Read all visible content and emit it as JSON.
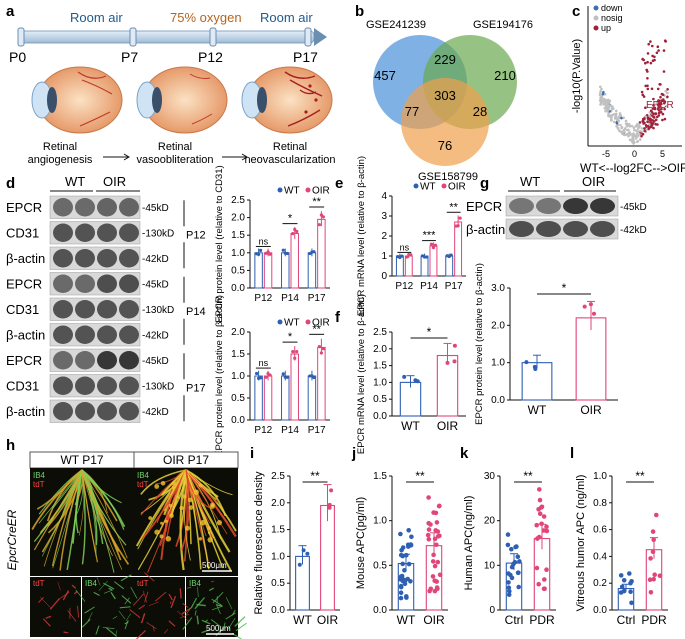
{
  "panels": {
    "a": "a",
    "b": "b",
    "c": "c",
    "d": "d",
    "e": "e",
    "f": "f",
    "g": "g",
    "h": "h",
    "i": "i",
    "j": "j",
    "k": "k",
    "l": "l"
  },
  "a": {
    "phases": [
      "Room air",
      "75% oxygen",
      "Room air"
    ],
    "timepoints": [
      "P0",
      "P7",
      "P12",
      "P17"
    ],
    "stages": [
      "Retinal angiogenesis",
      "Retinal vasoobliteration",
      "Retinal neovascularization"
    ],
    "stage_lines": [
      [
        "Retinal",
        "angiogenesis"
      ],
      [
        "Retinal",
        "vasoobliteration"
      ],
      [
        "Retinal",
        "neovascularization"
      ]
    ],
    "colors": {
      "room": "#1f5a8c",
      "oxygen": "#b5651d",
      "timeline": "#bcd3e6"
    }
  },
  "b": {
    "sets": [
      "GSE241239",
      "GSE194176",
      "GSE158799"
    ],
    "regions": {
      "only1": "457",
      "only2": "210",
      "only3": "76",
      "s12": "229",
      "s13": "77",
      "s23": "28",
      "all": "303"
    },
    "colors": {
      "set1": "#4a90d9",
      "set2": "#6aa84f",
      "set3": "#f0a04b"
    }
  },
  "c": {
    "legend": [
      "down",
      "nosig",
      "up"
    ],
    "colors": {
      "down": "#3d6fb5",
      "nosig": "#c0c0c0",
      "up": "#a0203a"
    },
    "ylabel": "-log10(P.Value)",
    "xlabel": "WT<--log2FC-->OIR",
    "xticks": [
      "-5",
      "0",
      "5"
    ],
    "annotation": "EPCR"
  },
  "blot_d": {
    "groups": [
      "WT",
      "OIR"
    ],
    "rows": [
      "EPCR",
      "CD31",
      "β-actin",
      "EPCR",
      "CD31",
      "β-actin",
      "EPCR",
      "CD31",
      "β-actin"
    ],
    "sizes": [
      "-45kD",
      "-130kD",
      "-42kD",
      "-45kD",
      "-130kD",
      "-42kD",
      "-45kD",
      "-130kD",
      "-42kD"
    ],
    "timepoints": [
      "P12",
      "P14",
      "P17"
    ]
  },
  "blot_g": {
    "groups": [
      "WT",
      "OIR"
    ],
    "rows": [
      "EPCR",
      "β-actin"
    ],
    "sizes": [
      "-45kD",
      "-42kD"
    ]
  },
  "image_h": {
    "side_label": "EpcrCreER",
    "titles": [
      "WT P17",
      "OIR P17"
    ],
    "channels": [
      "IB4",
      "tdT"
    ],
    "scale": "500μm"
  },
  "chart_data": [
    {
      "id": "d1",
      "type": "bar",
      "categories": [
        "P12",
        "P14",
        "P17"
      ],
      "series": [
        {
          "name": "WT",
          "values": [
            1.0,
            1.0,
            1.0
          ]
        },
        {
          "name": "OIR",
          "values": [
            1.0,
            1.55,
            1.95
          ]
        }
      ],
      "ylabel": "EPCR protein level (relative to CD31)",
      "ylim": [
        0,
        2.5
      ],
      "yticks": [
        "0.0",
        "0.5",
        "1.0",
        "1.5",
        "2.0",
        "2.5"
      ],
      "sig": [
        "ns",
        "*",
        "**"
      ],
      "legend": [
        "WT",
        "OIR"
      ]
    },
    {
      "id": "d2",
      "type": "bar",
      "categories": [
        "P12",
        "P14",
        "P17"
      ],
      "series": [
        {
          "name": "WT",
          "values": [
            1.0,
            1.0,
            1.0
          ]
        },
        {
          "name": "OIR",
          "values": [
            1.0,
            1.5,
            1.65
          ]
        }
      ],
      "ylabel": "EPCR protein level (relative to β-actin)",
      "ylim": [
        0,
        2.0
      ],
      "yticks": [
        "0.0",
        "0.5",
        "1.0",
        "1.5",
        "2.0"
      ],
      "sig": [
        "ns",
        "*",
        "**"
      ],
      "legend": [
        "WT",
        "OIR"
      ]
    },
    {
      "id": "e",
      "type": "bar",
      "categories": [
        "P12",
        "P14",
        "P17"
      ],
      "series": [
        {
          "name": "WT",
          "values": [
            1.0,
            1.0,
            1.0
          ]
        },
        {
          "name": "OIR",
          "values": [
            1.0,
            1.5,
            2.7
          ]
        }
      ],
      "ylabel": "EPCR mRNA level (relative to β-actin)",
      "ylim": [
        0,
        4
      ],
      "yticks": [
        "0",
        "1",
        "2",
        "3",
        "4"
      ],
      "sig": [
        "ns",
        "***",
        "**"
      ],
      "legend": [
        "WT",
        "OIR"
      ]
    },
    {
      "id": "f",
      "type": "bar",
      "categories": [
        "WT",
        "OIR"
      ],
      "series": [
        {
          "name": "value",
          "values": [
            1.0,
            1.8
          ]
        }
      ],
      "ylabel": "EPCR mRNA level (relative to β-actin)",
      "ylim": [
        0,
        2.5
      ],
      "yticks": [
        "0.0",
        "0.5",
        "1.0",
        "1.5",
        "2.0",
        "2.5"
      ],
      "sig": [
        "*"
      ]
    },
    {
      "id": "g",
      "type": "bar",
      "categories": [
        "WT",
        "OIR"
      ],
      "series": [
        {
          "name": "value",
          "values": [
            1.0,
            2.2
          ]
        }
      ],
      "ylabel": "EPCR protein level (relative to β-actin)",
      "ylim": [
        0,
        3.0
      ],
      "yticks": [
        "0.0",
        "1.0",
        "2.0",
        "3.0"
      ],
      "sig": [
        "*"
      ]
    },
    {
      "id": "i",
      "type": "bar",
      "categories": [
        "WT",
        "OIR"
      ],
      "series": [
        {
          "name": "value",
          "values": [
            1.0,
            1.95
          ]
        }
      ],
      "ylabel": "Relative fluorescence density",
      "ylim": [
        0,
        2.5
      ],
      "yticks": [
        "0.0",
        "0.5",
        "1.0",
        "1.5",
        "2.0",
        "2.5"
      ],
      "sig": [
        "**"
      ]
    },
    {
      "id": "j",
      "type": "bar",
      "categories": [
        "WT",
        "OIR"
      ],
      "series": [
        {
          "name": "value",
          "values": [
            0.52,
            0.72
          ]
        }
      ],
      "ylabel": "Mouse APC(pg/ml)",
      "ylim": [
        0,
        1.5
      ],
      "yticks": [
        "0.0",
        "0.5",
        "1.0",
        "1.5"
      ],
      "sig": [
        "**"
      ]
    },
    {
      "id": "k",
      "type": "bar",
      "categories": [
        "Ctrl",
        "PDR"
      ],
      "series": [
        {
          "name": "value",
          "values": [
            10.5,
            16
          ]
        }
      ],
      "ylabel": "Human APC(ng/ml)",
      "ylim": [
        0,
        30
      ],
      "yticks": [
        "0",
        "10",
        "20",
        "30"
      ],
      "sig": [
        "**"
      ]
    },
    {
      "id": "l",
      "type": "bar",
      "categories": [
        "Ctrl",
        "PDR"
      ],
      "series": [
        {
          "name": "value",
          "values": [
            0.16,
            0.45
          ]
        }
      ],
      "ylabel": "Vitreous humor APC (ng/ml)",
      "ylim": [
        0,
        1.0
      ],
      "yticks": [
        "0.0",
        "0.2",
        "0.4",
        "0.6",
        "0.8",
        "1.0"
      ],
      "sig": [
        "**"
      ]
    }
  ],
  "colors": {
    "wt": "#2f5fb3",
    "oir": "#e0457b",
    "ink": "#111111"
  }
}
